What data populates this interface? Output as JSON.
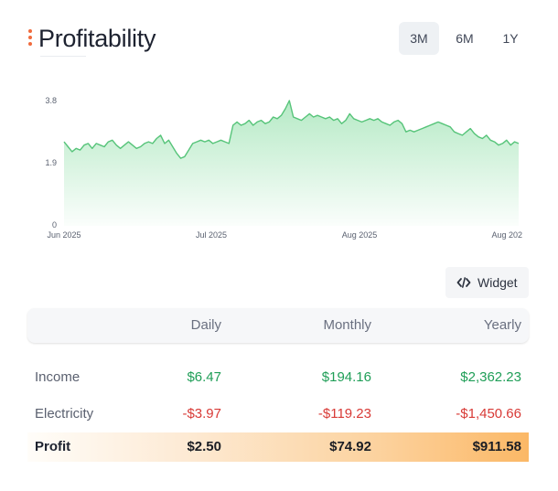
{
  "header": {
    "title": "Profitability",
    "menu_icon": "vertical-dots-icon",
    "accent_color": "#f06b3d"
  },
  "range_tabs": [
    {
      "label": "3M",
      "active": true
    },
    {
      "label": "6M",
      "active": false
    },
    {
      "label": "1Y",
      "active": false
    }
  ],
  "chart_data": {
    "type": "area",
    "title": "",
    "xlabel": "",
    "ylabel": "",
    "ylim": [
      0,
      3.8
    ],
    "y_ticks": [
      "3.8",
      "1.9",
      "0"
    ],
    "x_ticks": [
      "Jun 2025",
      "Jul 2025",
      "Aug 2025",
      "Aug 202"
    ],
    "grid": false,
    "line_color": "#56c479",
    "fill_color": "#a8e6bb",
    "x_start": "2025-06-01",
    "series": [
      {
        "name": "",
        "values": [
          2.55,
          2.4,
          2.25,
          2.35,
          2.3,
          2.45,
          2.5,
          2.35,
          2.5,
          2.45,
          2.4,
          2.55,
          2.6,
          2.45,
          2.35,
          2.45,
          2.55,
          2.45,
          2.35,
          2.4,
          2.5,
          2.55,
          2.5,
          2.65,
          2.75,
          2.5,
          2.6,
          2.4,
          2.2,
          2.05,
          2.1,
          2.3,
          2.5,
          2.55,
          2.6,
          2.55,
          2.6,
          2.5,
          2.55,
          2.6,
          2.55,
          2.5,
          3.05,
          3.15,
          3.05,
          3.1,
          3.2,
          3.05,
          3.15,
          3.2,
          3.1,
          3.15,
          3.3,
          3.25,
          3.35,
          3.55,
          3.8,
          3.3,
          3.25,
          3.2,
          3.3,
          3.4,
          3.3,
          3.35,
          3.3,
          3.25,
          3.3,
          3.2,
          3.25,
          3.1,
          3.2,
          3.4,
          3.25,
          3.2,
          3.15,
          3.2,
          3.25,
          3.2,
          3.25,
          3.15,
          3.1,
          3.05,
          3.15,
          3.2,
          3.1,
          2.85,
          2.9,
          2.85,
          2.9,
          2.95,
          3.0,
          3.05,
          3.1,
          3.15,
          3.1,
          3.05,
          3.0,
          2.85,
          2.8,
          2.75,
          2.85,
          2.95,
          2.8,
          2.7,
          2.65,
          2.75,
          2.6,
          2.55,
          2.45,
          2.5,
          2.6,
          2.45,
          2.55,
          2.5
        ]
      }
    ]
  },
  "widget_button": {
    "label": "Widget",
    "icon": "code-icon"
  },
  "table": {
    "columns": [
      "Daily",
      "Monthly",
      "Yearly"
    ],
    "rows": [
      {
        "label": "Income",
        "daily": "$6.47",
        "monthly": "$194.16",
        "yearly": "$2,362.23",
        "tone": "positive"
      },
      {
        "label": "Electricity",
        "daily": "-$3.97",
        "monthly": "-$119.23",
        "yearly": "-$1,450.66",
        "tone": "negative"
      }
    ],
    "profit": {
      "label": "Profit",
      "daily": "$2.50",
      "monthly": "$74.92",
      "yearly": "$911.58"
    },
    "positive_color": "#1f9e57",
    "negative_color": "#d83a36",
    "profit_gradient_end": "#fbb866"
  }
}
